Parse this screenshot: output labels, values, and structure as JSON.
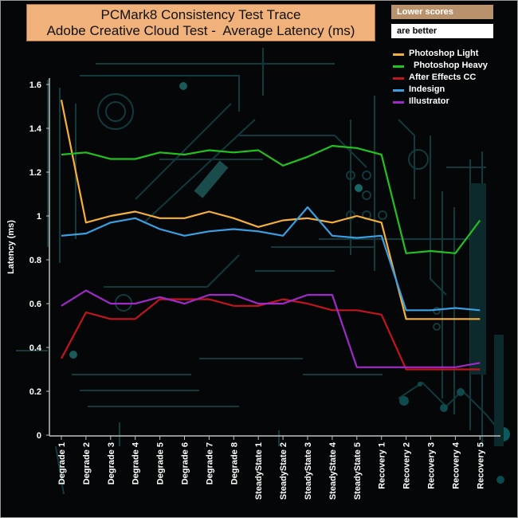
{
  "chart_data": {
    "type": "line",
    "title": "PCMark8 Consistency Test Trace",
    "subtitle": "Adobe Creative Cloud Test -  Average Latency (ms)",
    "ylabel": "Latency (ms)",
    "xlabel": "",
    "ylim": [
      0,
      1.6
    ],
    "yticks": [
      "0",
      "0.2",
      "0.4",
      "0.6",
      "0.8",
      "1",
      "1.2",
      "1.4",
      "1.6"
    ],
    "grid": false,
    "legend_position": "top-right",
    "note": [
      "Lower scores",
      "are better"
    ],
    "categories": [
      "Degrade 1",
      "Degrade 2",
      "Degrade 3",
      "Degrade 4",
      "Degrade 5",
      "Degrade 6",
      "Degrade 7",
      "Degrade 8",
      "SteadyState 1",
      "SteadyState 2",
      "SteadyState 3",
      "SteadyState 4",
      "SteadyState 5",
      "Recovery 1",
      "Recovery 2",
      "Recovery 3",
      "Recovery 4",
      "Recovery 5"
    ],
    "series": [
      {
        "name": "Photoshop Light",
        "color": "#f5b03c",
        "values": [
          1.53,
          0.97,
          1.0,
          1.02,
          0.99,
          0.99,
          1.02,
          0.99,
          0.95,
          0.98,
          0.99,
          0.97,
          1.0,
          0.97,
          0.53,
          0.53,
          0.53,
          0.53
        ]
      },
      {
        "name": "Photoshop Heavy",
        "color": "#22c11f",
        "values": [
          1.28,
          1.29,
          1.26,
          1.26,
          1.29,
          1.28,
          1.3,
          1.29,
          1.3,
          1.23,
          1.27,
          1.32,
          1.31,
          1.28,
          0.83,
          0.84,
          0.83,
          0.98
        ]
      },
      {
        "name": "After Effects CC",
        "color": "#c4141e",
        "values": [
          0.35,
          0.56,
          0.53,
          0.53,
          0.62,
          0.62,
          0.62,
          0.59,
          0.59,
          0.62,
          0.6,
          0.57,
          0.57,
          0.55,
          0.3,
          0.3,
          0.3,
          0.3
        ]
      },
      {
        "name": "Indesign",
        "color": "#3aa0e4",
        "values": [
          0.91,
          0.92,
          0.97,
          0.99,
          0.94,
          0.91,
          0.93,
          0.94,
          0.93,
          0.91,
          1.04,
          0.91,
          0.9,
          0.91,
          0.57,
          0.57,
          0.58,
          0.57
        ]
      },
      {
        "name": "Illustrator",
        "color": "#a02ac8",
        "values": [
          0.59,
          0.66,
          0.6,
          0.6,
          0.63,
          0.6,
          0.64,
          0.64,
          0.6,
          0.6,
          0.64,
          0.64,
          0.31,
          0.31,
          0.31,
          0.31,
          0.31,
          0.33
        ]
      }
    ]
  }
}
